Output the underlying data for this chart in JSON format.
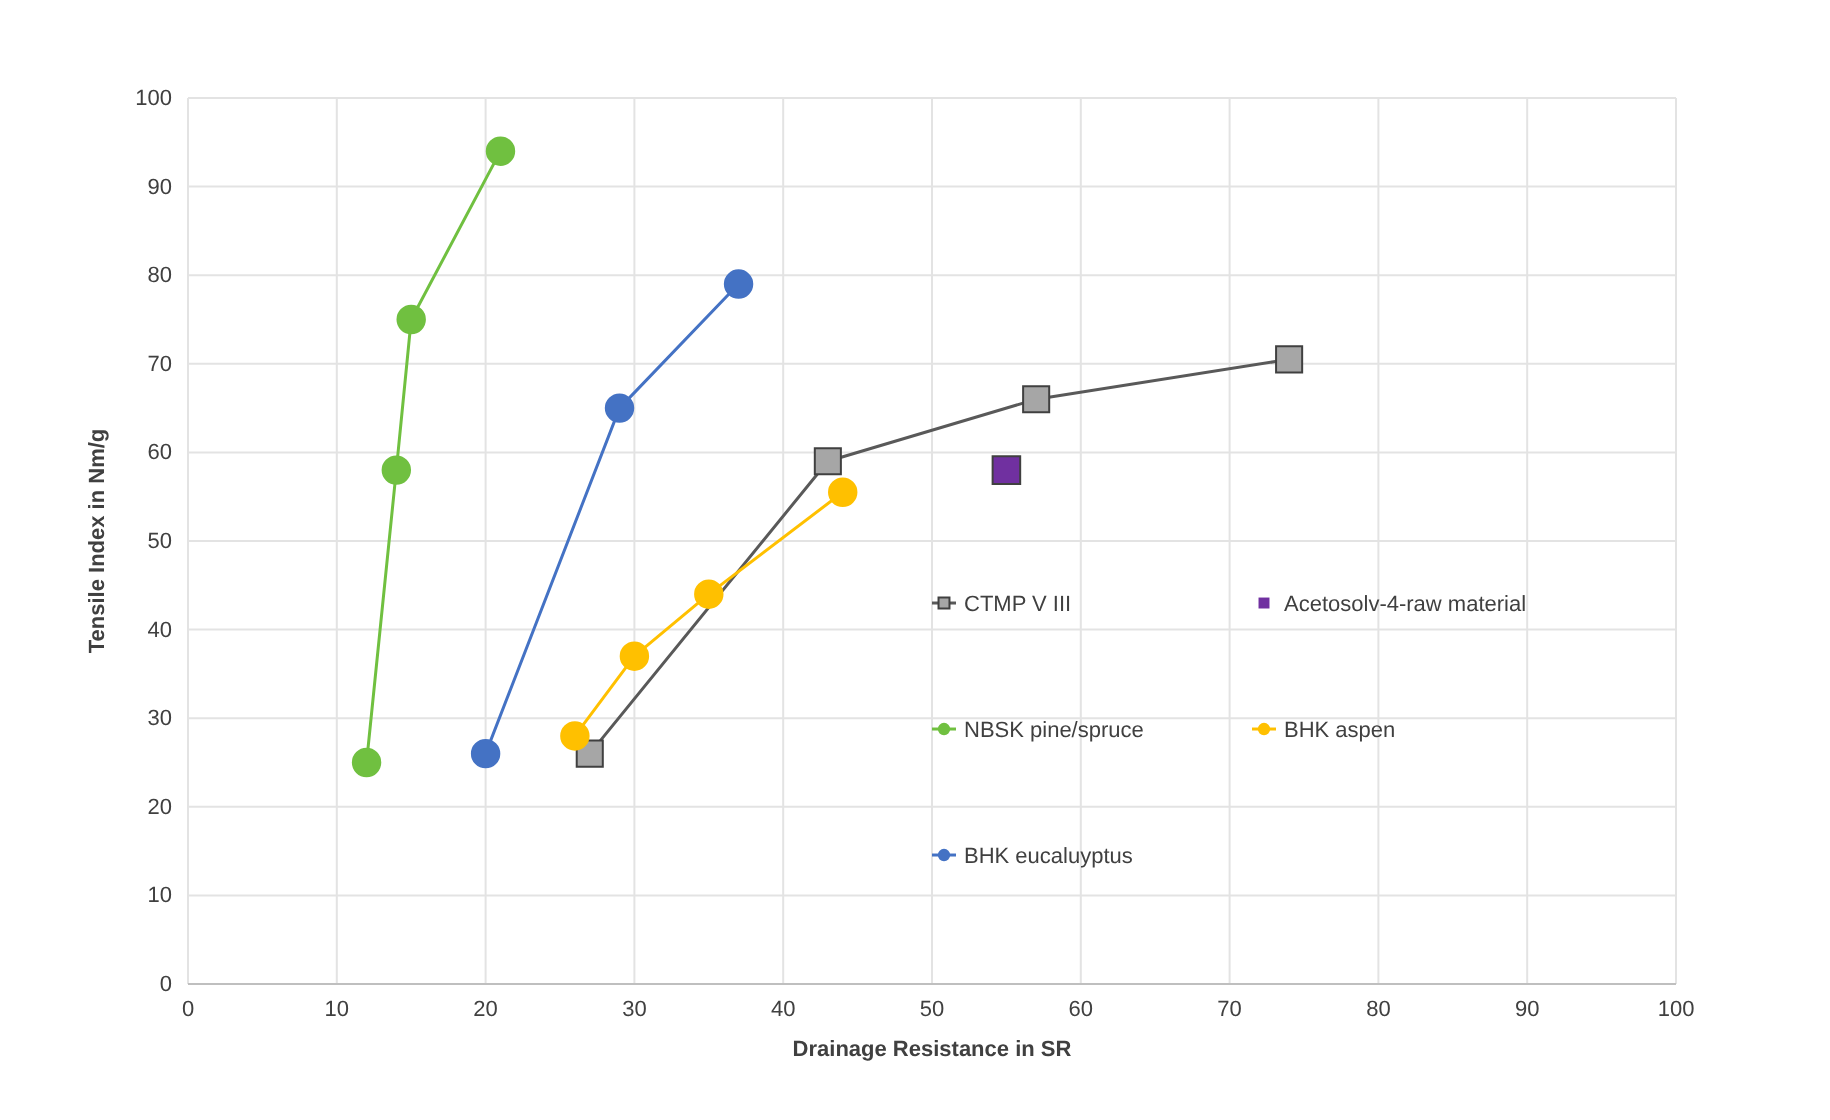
{
  "chart_data": {
    "type": "line",
    "xlabel": "Drainage Resistance in SR",
    "ylabel": "Tensile Index in Nm/g",
    "xlim": [
      0,
      100
    ],
    "ylim": [
      0,
      100
    ],
    "xticks": [
      0,
      10,
      20,
      30,
      40,
      50,
      60,
      70,
      80,
      90,
      100
    ],
    "yticks": [
      0,
      10,
      20,
      30,
      40,
      50,
      60,
      70,
      80,
      90,
      100
    ],
    "grid": true,
    "legend": "right",
    "series": [
      {
        "name": "CTMP V III",
        "color": "#a6a6a6",
        "marker": "square",
        "x": [
          27,
          43,
          57,
          74
        ],
        "values": [
          26,
          59,
          66,
          70.5
        ]
      },
      {
        "name": "Acetosolv-4-raw material",
        "color": "#7030a0",
        "type": "scatter",
        "marker": "square",
        "x": [
          55
        ],
        "values": [
          58
        ]
      },
      {
        "name": "NBSK pine/spruce",
        "color": "#70c040",
        "marker": "circle",
        "x": [
          12,
          14,
          15,
          21
        ],
        "values": [
          25,
          58,
          75,
          94
        ]
      },
      {
        "name": "BHK aspen",
        "color": "#ffc000",
        "marker": "circle",
        "x": [
          26,
          30,
          35,
          44
        ],
        "values": [
          28,
          37,
          44,
          55.5
        ]
      },
      {
        "name": "BHK eucaluyptus",
        "color": "#4472c4",
        "marker": "circle",
        "x": [
          20,
          29,
          37
        ],
        "values": [
          26,
          65,
          79
        ]
      }
    ]
  }
}
